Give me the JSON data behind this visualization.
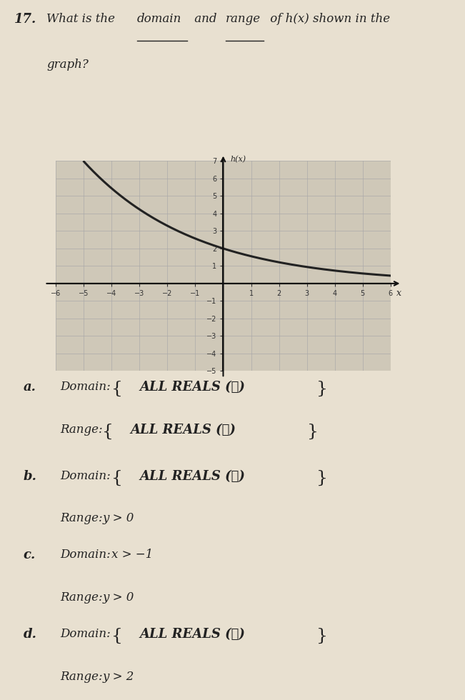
{
  "question_number": "17.",
  "bg_color": "#e8e0d0",
  "graph": {
    "xlim": [
      -6,
      6
    ],
    "ylim": [
      -5,
      7
    ],
    "curve_color": "#222222",
    "grid_color": "#aaaaaa",
    "axis_color": "#111111"
  },
  "options": [
    {
      "letter": "a.",
      "domain_brace": true,
      "domain_text": "ALL REALS (ℝ)",
      "range_brace": true,
      "range_text": "ALL REALS (ℝ)"
    },
    {
      "letter": "b.",
      "domain_brace": true,
      "domain_text": "ALL REALS (ℝ)",
      "range_brace": false,
      "range_text": "y > 0"
    },
    {
      "letter": "c.",
      "domain_brace": false,
      "domain_text": "x > −1",
      "range_brace": false,
      "range_text": "y > 0"
    },
    {
      "letter": "d.",
      "domain_brace": true,
      "domain_text": "ALL REALS (ℝ)",
      "range_brace": false,
      "range_text": "y > 2"
    }
  ]
}
